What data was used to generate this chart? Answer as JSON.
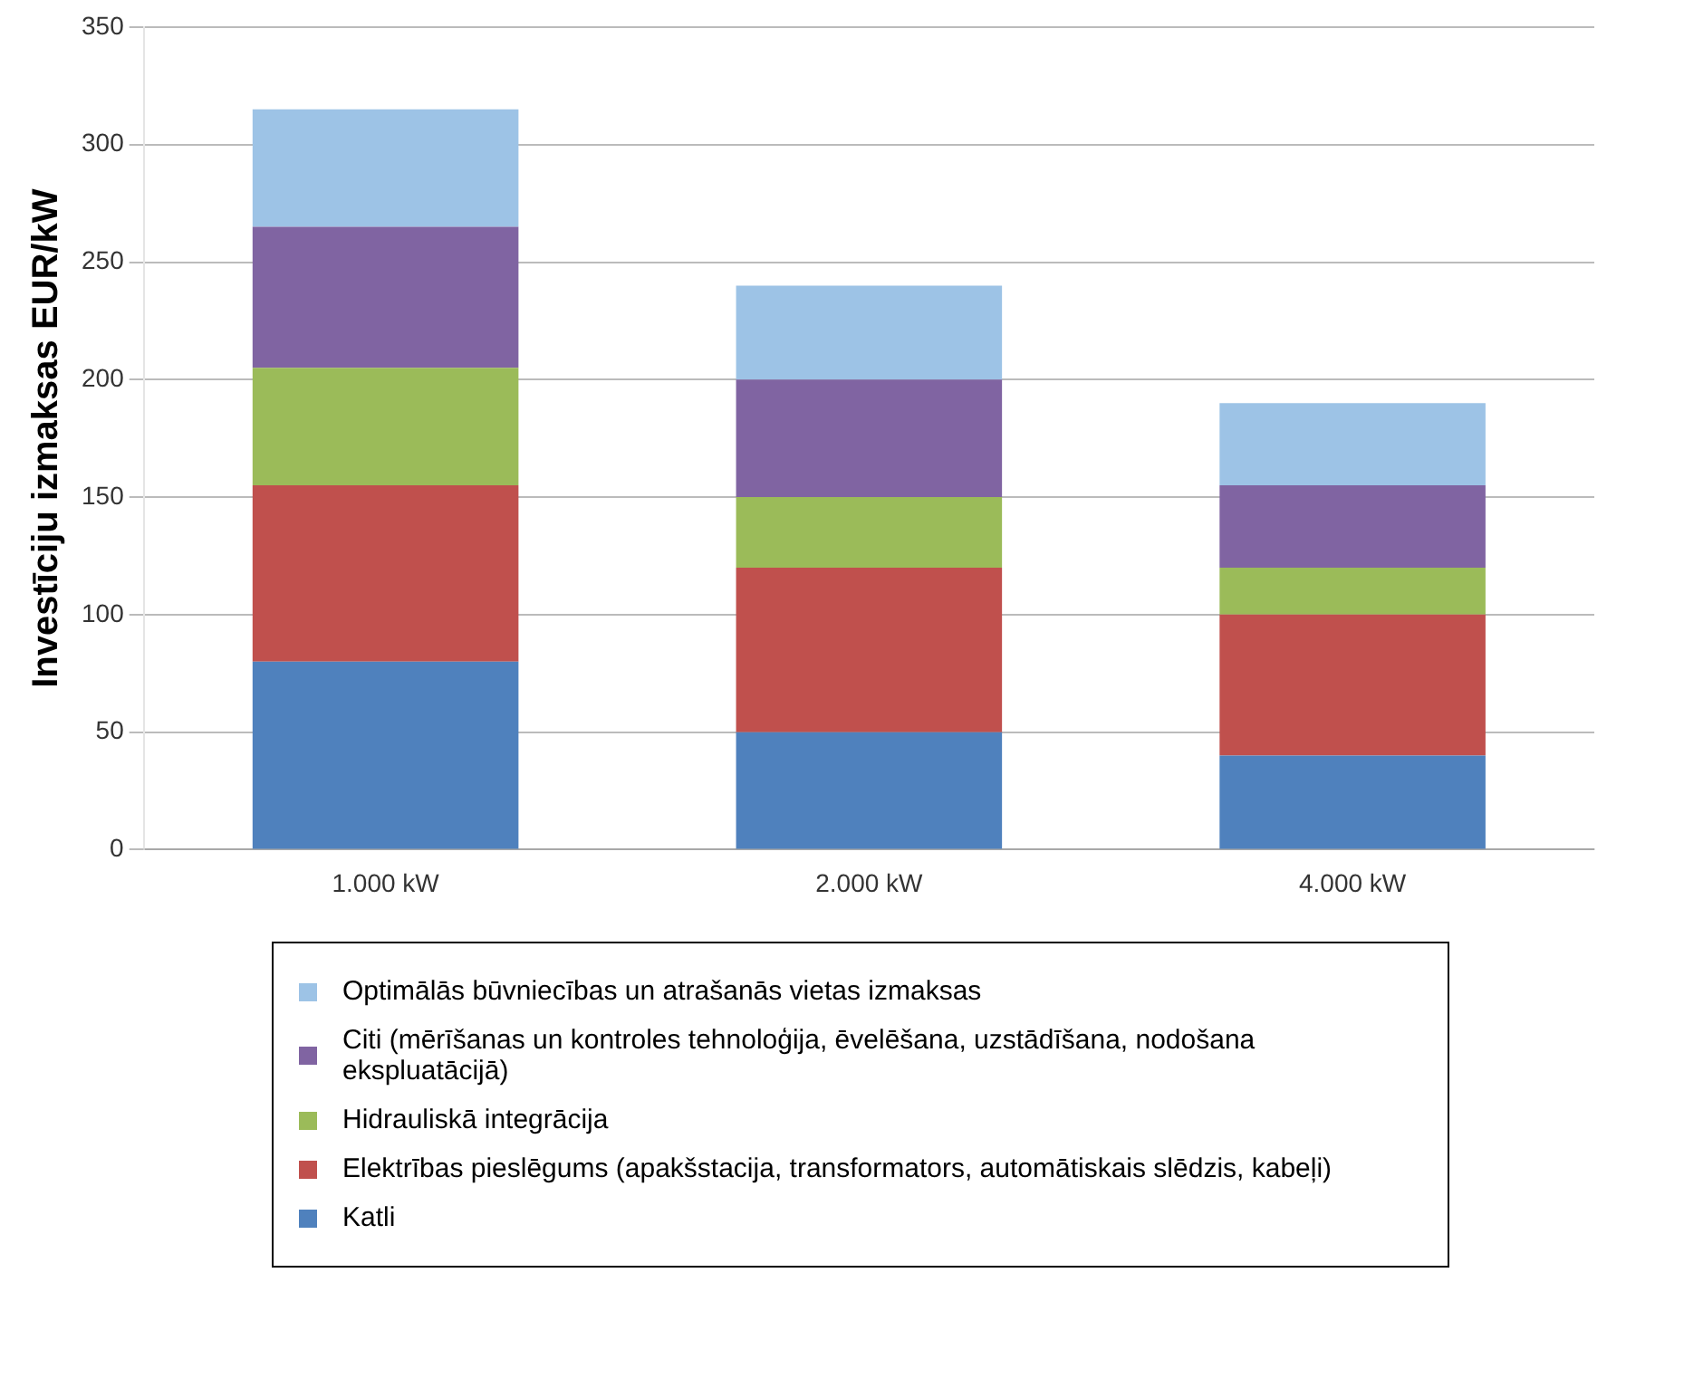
{
  "chart_data": {
    "type": "bar",
    "stacked": true,
    "ylabel": "Investīciju izmaksas EUR/kW",
    "categories": [
      "1.000 kW",
      "2.000 kW",
      "4.000 kW"
    ],
    "series": [
      {
        "name": "Katli",
        "color": "#4f81bd",
        "values": [
          80,
          50,
          40
        ]
      },
      {
        "name": "Elektrības pieslēgums (apakšstacija, transformators, automātiskais slēdzis, kabeļi)",
        "color": "#c0504d",
        "values": [
          75,
          70,
          60
        ]
      },
      {
        "name": "Hidrauliskā integrācija",
        "color": "#9bbb59",
        "values": [
          50,
          30,
          20
        ]
      },
      {
        "name": "Citi (mērīšanas un kontroles tehnoloģija, ēvelēšana, uzstādīšana, nodošana ekspluatācijā)",
        "color": "#8064a2",
        "values": [
          60,
          50,
          35
        ]
      },
      {
        "name": "Optimālās būvniecības un atrašanās vietas izmaksas",
        "color": "#9dc3e6",
        "values": [
          50,
          40,
          35
        ]
      }
    ],
    "ylim": [
      0,
      350
    ],
    "yticks": [
      0,
      50,
      100,
      150,
      200,
      250,
      300,
      350
    ],
    "grid": "y",
    "legend": "bottom"
  }
}
